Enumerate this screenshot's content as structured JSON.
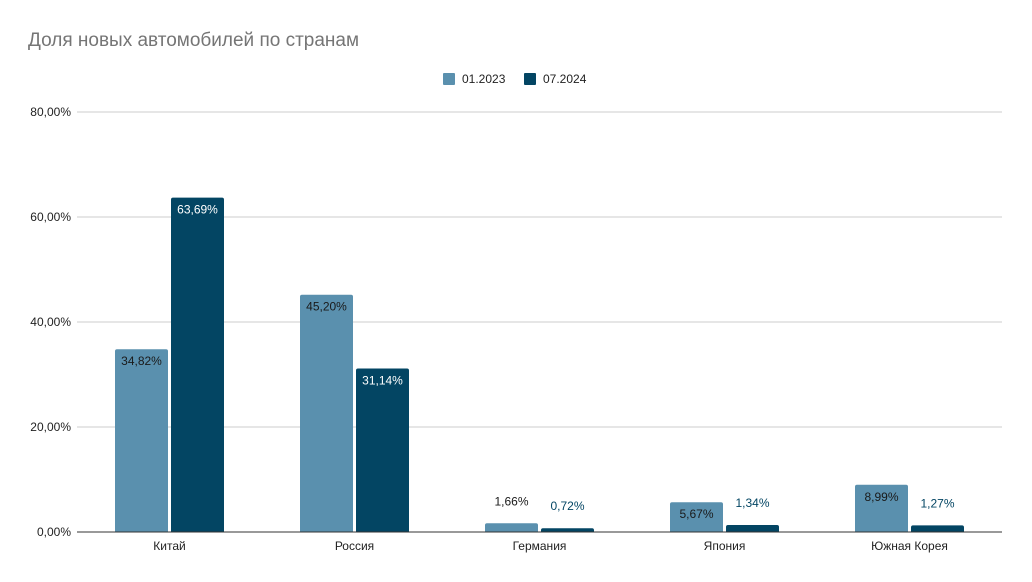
{
  "chart_data": {
    "type": "bar",
    "title": "Доля новых автомобилей по странам",
    "categories": [
      "Китай",
      "Россия",
      "Германия",
      "Япония",
      "Южная Корея"
    ],
    "series": [
      {
        "name": "01.2023",
        "color": "#5a90ae",
        "values": [
          34.82,
          45.2,
          1.66,
          5.67,
          8.99
        ],
        "labels": [
          "34,82%",
          "45,20%",
          "1,66%",
          "5,67%",
          "8,99%"
        ]
      },
      {
        "name": "07.2024",
        "color": "#034563",
        "values": [
          63.69,
          31.14,
          0.72,
          1.34,
          1.27
        ],
        "labels": [
          "63,69%",
          "31,14%",
          "0,72%",
          "1,34%",
          "1,27%"
        ]
      }
    ],
    "y_ticks": [
      {
        "value": 0,
        "label": "0,00%"
      },
      {
        "value": 20,
        "label": "20,00%"
      },
      {
        "value": 40,
        "label": "40,00%"
      },
      {
        "value": 60,
        "label": "60,00%"
      },
      {
        "value": 80,
        "label": "80,00%"
      }
    ],
    "ylim": [
      0,
      80
    ],
    "xlabel": "",
    "ylabel": "",
    "grid": true,
    "legend_position": "top-center"
  }
}
